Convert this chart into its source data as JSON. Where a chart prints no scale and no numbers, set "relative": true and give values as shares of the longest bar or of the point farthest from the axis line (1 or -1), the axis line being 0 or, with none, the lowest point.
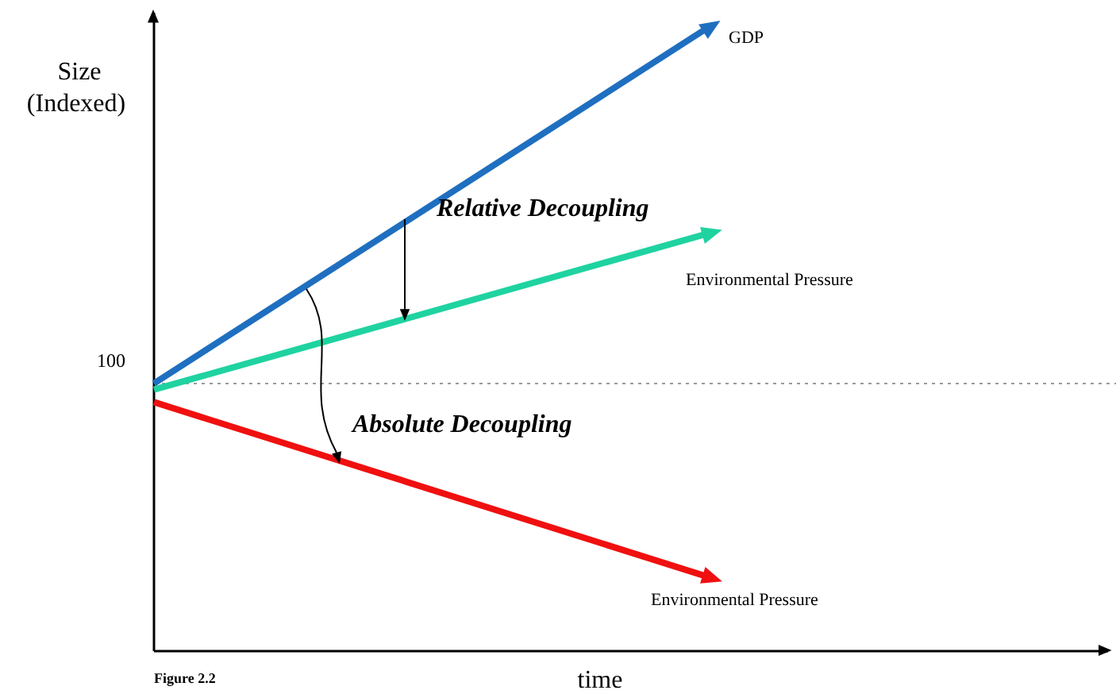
{
  "chart_data": {
    "type": "line",
    "relative": true,
    "xlabel": "time",
    "ylabel": "Size (Indexed)",
    "categories": [
      null,
      null
    ],
    "tick_labels": false,
    "legend": false,
    "line_style": "solid",
    "series": [
      {
        "name": "GDP",
        "type": "line",
        "color": "#1f6fc0",
        "values": [
          0.43,
          1
        ]
      },
      {
        "name": "Environmental Pressure",
        "type": "line",
        "color": "#1fd3a0",
        "values": [
          0.42,
          0.67
        ]
      },
      {
        "name": "Environmental Pressure",
        "type": "line",
        "color": "#f01010",
        "values": [
          0.4,
          0.12
        ]
      }
    ],
    "ref_lines": [
      {
        "axis": "y",
        "value": 0.43,
        "line_style": "dotted",
        "color": "#9a9a9a"
      }
    ],
    "annotations": [
      "Relative Decoupling",
      "Absolute Decoupling",
      "Figure 2.2",
      "100"
    ]
  }
}
